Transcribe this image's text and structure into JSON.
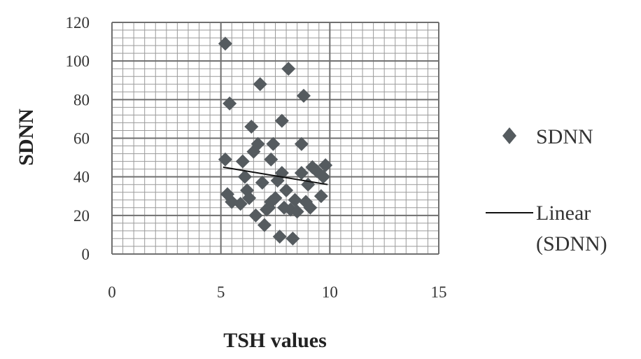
{
  "chart_data": {
    "type": "scatter",
    "title": "",
    "xlabel": "TSH values",
    "ylabel": "SDNN",
    "xlim": [
      0,
      15
    ],
    "ylim": [
      0,
      120
    ],
    "x_ticks": [
      0,
      5,
      10,
      15
    ],
    "y_ticks": [
      0,
      20,
      40,
      60,
      80,
      100,
      120
    ],
    "x_tick_labels": [
      "0",
      "5",
      "10",
      "15"
    ],
    "y_tick_labels": [
      "0",
      "20",
      "40",
      "60",
      "80",
      "100",
      "120"
    ],
    "grid": {
      "major_x": true,
      "minor_x_step": 0.5,
      "major_y": true,
      "minor_y_step": 4
    },
    "legend": {
      "position": "right",
      "entries": [
        {
          "label": "SDNN",
          "marker": "diamond"
        },
        {
          "label_lines": [
            "Linear",
            "(SDNN)"
          ],
          "marker": "line"
        }
      ]
    },
    "series": [
      {
        "name": "SDNN",
        "marker": "diamond",
        "color": "#555b5f",
        "points": [
          [
            5.2,
            109
          ],
          [
            5.4,
            78
          ],
          [
            5.2,
            49
          ],
          [
            5.3,
            31
          ],
          [
            5.5,
            27
          ],
          [
            5.9,
            26
          ],
          [
            6.0,
            48
          ],
          [
            6.1,
            40
          ],
          [
            6.2,
            33
          ],
          [
            6.3,
            29
          ],
          [
            6.4,
            66
          ],
          [
            6.5,
            53
          ],
          [
            6.6,
            20
          ],
          [
            6.7,
            57
          ],
          [
            6.8,
            88
          ],
          [
            6.9,
            37
          ],
          [
            7.0,
            15
          ],
          [
            7.1,
            23
          ],
          [
            7.2,
            24
          ],
          [
            7.3,
            27
          ],
          [
            7.3,
            49
          ],
          [
            7.4,
            57
          ],
          [
            7.5,
            29
          ],
          [
            7.6,
            38
          ],
          [
            7.7,
            9
          ],
          [
            7.8,
            69
          ],
          [
            7.8,
            42
          ],
          [
            7.9,
            24
          ],
          [
            8.0,
            33
          ],
          [
            8.1,
            96
          ],
          [
            8.2,
            23
          ],
          [
            8.3,
            8
          ],
          [
            8.4,
            28
          ],
          [
            8.5,
            22
          ],
          [
            8.7,
            57
          ],
          [
            8.7,
            42
          ],
          [
            8.8,
            82
          ],
          [
            8.9,
            27
          ],
          [
            9.0,
            36
          ],
          [
            9.1,
            24
          ],
          [
            9.2,
            45
          ],
          [
            9.4,
            43
          ],
          [
            9.6,
            30
          ],
          [
            9.7,
            40
          ],
          [
            9.8,
            46
          ]
        ]
      }
    ],
    "trendline": {
      "name": "Linear (SDNN)",
      "type": "linear",
      "color": "#111111",
      "x": [
        5.1,
        9.9
      ],
      "y": [
        45,
        36
      ]
    }
  }
}
